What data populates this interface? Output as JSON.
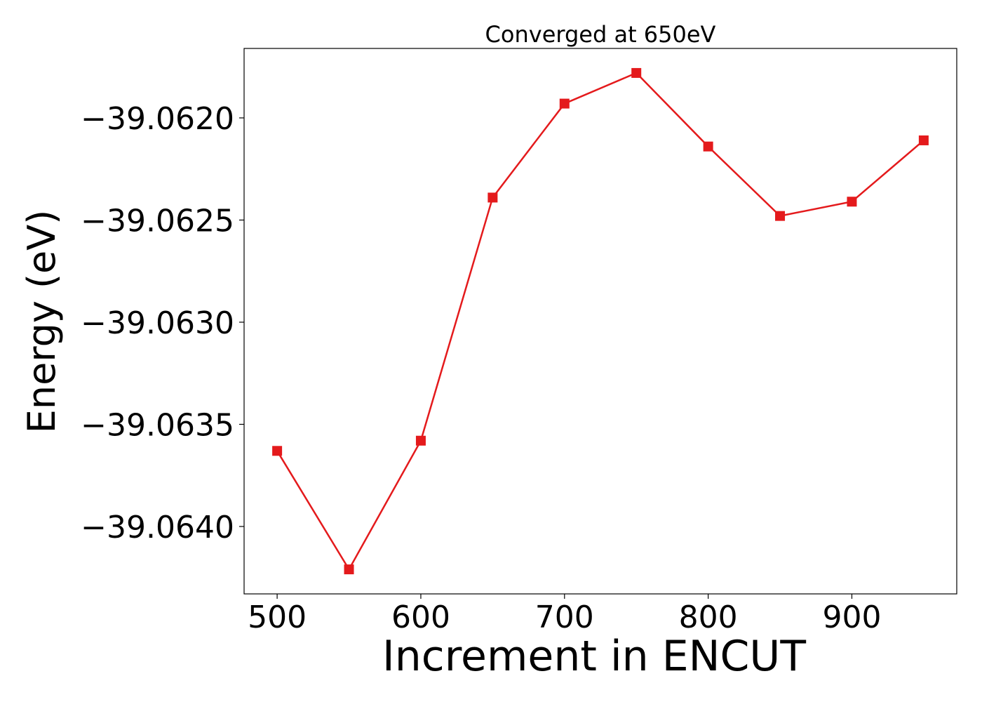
{
  "chart_data": {
    "type": "line",
    "title": "Converged at 650eV",
    "xlabel": "Increment in ENCUT",
    "ylabel": "Energy (eV)",
    "xlim": [
      477,
      973
    ],
    "ylim": [
      -39.06433,
      -39.06166
    ],
    "x_ticks": [
      500,
      600,
      700,
      800,
      900
    ],
    "x_tick_labels": [
      "500",
      "600",
      "700",
      "800",
      "900"
    ],
    "y_ticks": [
      -39.064,
      -39.0635,
      -39.063,
      -39.0625,
      -39.062
    ],
    "y_tick_labels": [
      "−39.0640",
      "−39.0635",
      "−39.0630",
      "−39.0625",
      "−39.0620"
    ],
    "grid": false,
    "series": [
      {
        "color": "#e41a1c",
        "marker": "square",
        "x": [
          500,
          550,
          600,
          650,
          700,
          750,
          800,
          850,
          900,
          950
        ],
        "y": [
          -39.06363,
          -39.06421,
          -39.06358,
          -39.06239,
          -39.06193,
          -39.06178,
          -39.06214,
          -39.06248,
          -39.06241,
          -39.06211
        ]
      }
    ]
  }
}
